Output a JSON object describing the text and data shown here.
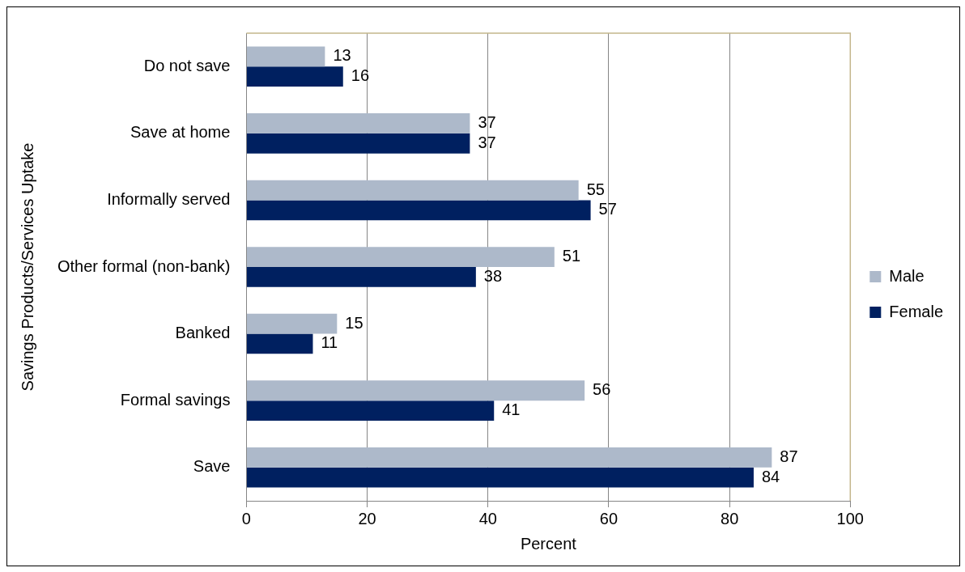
{
  "chart_data": {
    "type": "bar",
    "orientation": "horizontal",
    "xlabel": "Percent",
    "ylabel": "Savings Products/Services Uptake",
    "categories": [
      "Do not save",
      "Save at home",
      "Informally served",
      "Other formal (non-bank)",
      "Banked",
      "Formal savings",
      "Save"
    ],
    "series": [
      {
        "name": "Male",
        "color": "#adb9ca",
        "values": [
          13,
          37,
          55,
          51,
          15,
          56,
          87
        ]
      },
      {
        "name": "Female",
        "color": "#002060",
        "values": [
          16,
          37,
          57,
          38,
          11,
          41,
          84
        ]
      }
    ],
    "xlim": [
      0,
      100
    ],
    "xticks": [
      0,
      20,
      40,
      60,
      80,
      100
    ],
    "grid": "x",
    "legend": "right",
    "data_labels": true
  }
}
